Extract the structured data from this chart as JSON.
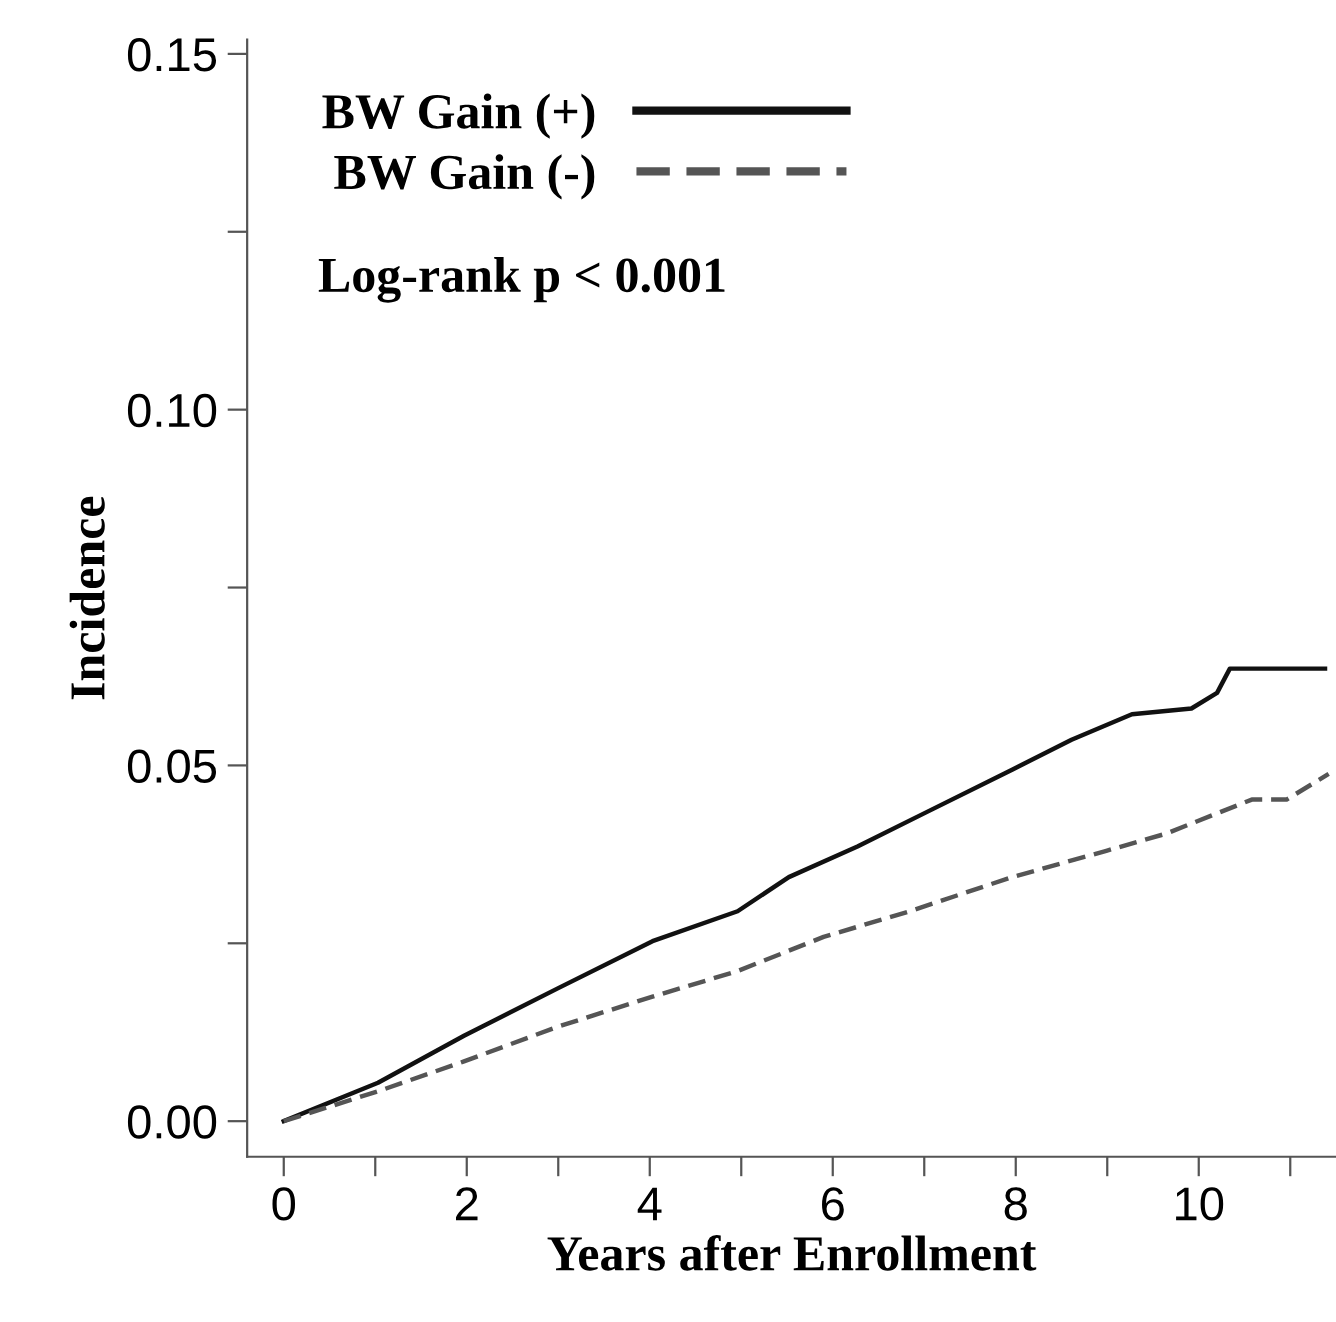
{
  "chart_data": {
    "type": "line",
    "xlabel": "Years after Enrollment",
    "ylabel": "Incidence",
    "series": [
      {
        "name": "BW Gain (+)",
        "color": "#111111",
        "line_style": "solid",
        "x": [
          0,
          1.03,
          1.97,
          3.0,
          4.03,
          4.96,
          5.52,
          6.27,
          7.02,
          7.96,
          8.61,
          9.27,
          9.92,
          10.2,
          10.34,
          11.38
        ],
        "values": [
          0,
          0.0054,
          0.012,
          0.0187,
          0.0253,
          0.0295,
          0.0343,
          0.0386,
          0.0434,
          0.0494,
          0.0536,
          0.0572,
          0.058,
          0.0602,
          0.0636,
          0.0636
        ]
      },
      {
        "name": "BW Gain (-)",
        "color": "#555555",
        "line_style": "dashed",
        "x": [
          0,
          1.03,
          1.97,
          3.0,
          4.03,
          4.96,
          5.9,
          6.84,
          7.96,
          8.99,
          9.64,
          10.58,
          10.96,
          11.42
        ],
        "values": [
          0,
          0.0042,
          0.0084,
          0.0133,
          0.0175,
          0.0211,
          0.0259,
          0.0295,
          0.0343,
          0.038,
          0.0404,
          0.0452,
          0.0452,
          0.0488
        ]
      }
    ],
    "annotations": [
      "Log-rank p < 0.001"
    ],
    "xlim": [
      -0.4,
      11.5
    ],
    "ylim": [
      -0.005,
      0.152
    ],
    "xticks": [
      0,
      {
        "value": 1,
        "label": null
      },
      2,
      {
        "value": 3,
        "label": null
      },
      4,
      {
        "value": 5,
        "label": null
      },
      6,
      {
        "value": 7,
        "label": null
      },
      8,
      {
        "value": 9,
        "label": null
      },
      10,
      {
        "value": 11,
        "label": null
      }
    ],
    "yticks": [
      {
        "value": 0,
        "label": "0.00"
      },
      {
        "value": 0.025,
        "label": null
      },
      0.05,
      {
        "value": 0.075,
        "label": null
      },
      {
        "value": 0.1,
        "label": "0.10"
      },
      {
        "value": 0.125,
        "label": null
      },
      0.15
    ],
    "grid": false,
    "legend": "top left"
  }
}
